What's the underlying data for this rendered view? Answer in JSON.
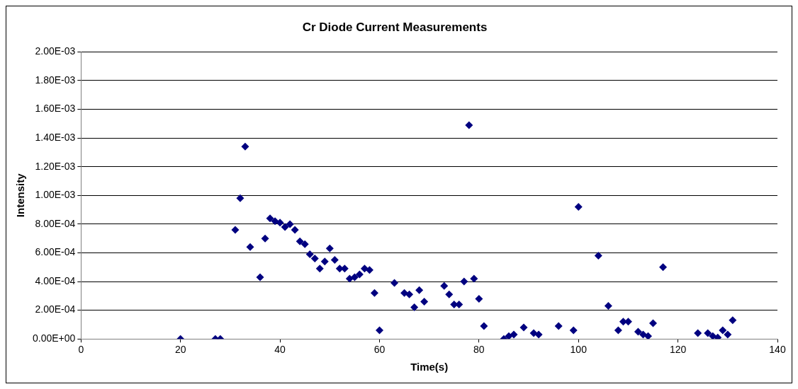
{
  "chart_data": {
    "type": "scatter",
    "title": "Cr Diode Current Measurements",
    "xlabel": "Time(s)",
    "ylabel": "Intensity",
    "x": [
      20,
      27,
      28,
      31,
      32,
      33,
      34,
      36,
      37,
      38,
      39,
      40,
      41,
      42,
      43,
      44,
      45,
      46,
      47,
      48,
      49,
      50,
      51,
      52,
      53,
      54,
      55,
      56,
      57,
      58,
      59,
      60,
      63,
      65,
      66,
      67,
      68,
      69,
      73,
      74,
      75,
      76,
      77,
      78,
      79,
      80,
      81,
      85,
      86,
      87,
      89,
      91,
      92,
      96,
      99,
      100,
      104,
      106,
      108,
      109,
      110,
      112,
      113,
      114,
      115,
      117,
      124,
      126,
      127,
      128,
      129,
      130,
      131
    ],
    "series": [
      {
        "color": "#000080",
        "values": [
          0,
          0,
          0,
          0.00076,
          0.00098,
          0.00134,
          0.00064,
          0.00043,
          0.0007,
          0.00084,
          0.00082,
          0.00081,
          0.00078,
          0.0008,
          0.00076,
          0.00068,
          0.00066,
          0.00059,
          0.00056,
          0.00049,
          0.00054,
          0.00063,
          0.00055,
          0.00049,
          0.00049,
          0.00042,
          0.00043,
          0.00045,
          0.00049,
          0.00048,
          0.00032,
          6e-05,
          0.00039,
          0.00032,
          0.00031,
          0.00022,
          0.00034,
          0.00026,
          0.00037,
          0.00031,
          0.00024,
          0.00024,
          0.0004,
          0.00149,
          0.00042,
          0.00028,
          9e-05,
          0,
          2e-05,
          3e-05,
          8e-05,
          4e-05,
          3e-05,
          9e-05,
          6e-05,
          0.00092,
          0.00058,
          0.00023,
          6e-05,
          0.00012,
          0.00012,
          5e-05,
          3e-05,
          2e-05,
          0.00011,
          0.0005,
          4e-05,
          4e-05,
          2e-05,
          1e-05,
          6e-05,
          3e-05,
          0.00013
        ]
      }
    ],
    "xlim": [
      0,
      140
    ],
    "xticks": [
      0,
      20,
      40,
      60,
      80,
      100,
      120,
      140
    ],
    "ylim": [
      0,
      0.002
    ],
    "yticks": [
      {
        "value": 0,
        "label": "0.00E+00"
      },
      {
        "value": 0.0002,
        "label": "2.00E-04"
      },
      {
        "value": 0.0004,
        "label": "4.00E-04"
      },
      {
        "value": 0.0006,
        "label": "6.00E-04"
      },
      {
        "value": 0.0008,
        "label": "8.00E-04"
      },
      {
        "value": 0.001,
        "label": "1.00E-03"
      },
      {
        "value": 0.0012,
        "label": "1.20E-03"
      },
      {
        "value": 0.0014,
        "label": "1.40E-03"
      },
      {
        "value": 0.0016,
        "label": "1.60E-03"
      },
      {
        "value": 0.0018,
        "label": "1.80E-03"
      },
      {
        "value": 0.002,
        "label": "2.00E-03"
      }
    ],
    "grid": "y",
    "legend": false,
    "marker": "diamond"
  }
}
